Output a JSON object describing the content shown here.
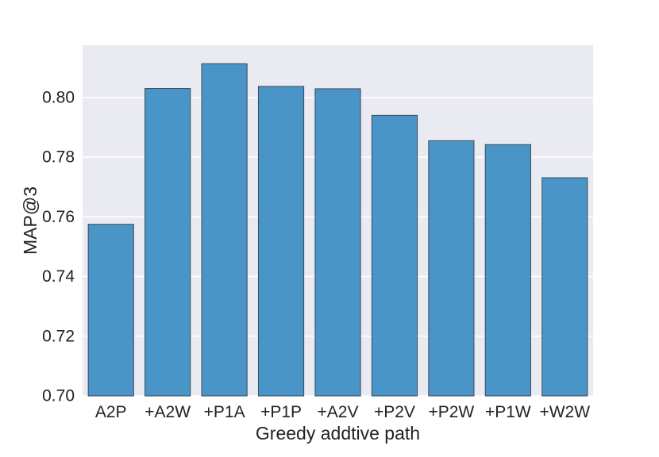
{
  "chart_data": {
    "type": "bar",
    "title": "",
    "xlabel": "Greedy addtive path",
    "ylabel": "MAP@3",
    "categories": [
      "A2P",
      "+A2W",
      "+P1A",
      "+P1P",
      "+A2V",
      "+P2V",
      "+P2W",
      "+P1W",
      "+W2W"
    ],
    "values": [
      0.7575,
      0.803,
      0.8113,
      0.8037,
      0.8029,
      0.794,
      0.7855,
      0.7842,
      0.7731
    ],
    "ylim": [
      0.7,
      0.8175
    ],
    "yticks": [
      "0.70",
      "0.72",
      "0.74",
      "0.76",
      "0.78",
      "0.80"
    ],
    "ytick_values": [
      0.7,
      0.72,
      0.74,
      0.76,
      0.78,
      0.8
    ],
    "grid": true,
    "bar_color": "#4a95c8",
    "plot_background": "#eaeaf2",
    "grid_color": "#ffffff"
  }
}
